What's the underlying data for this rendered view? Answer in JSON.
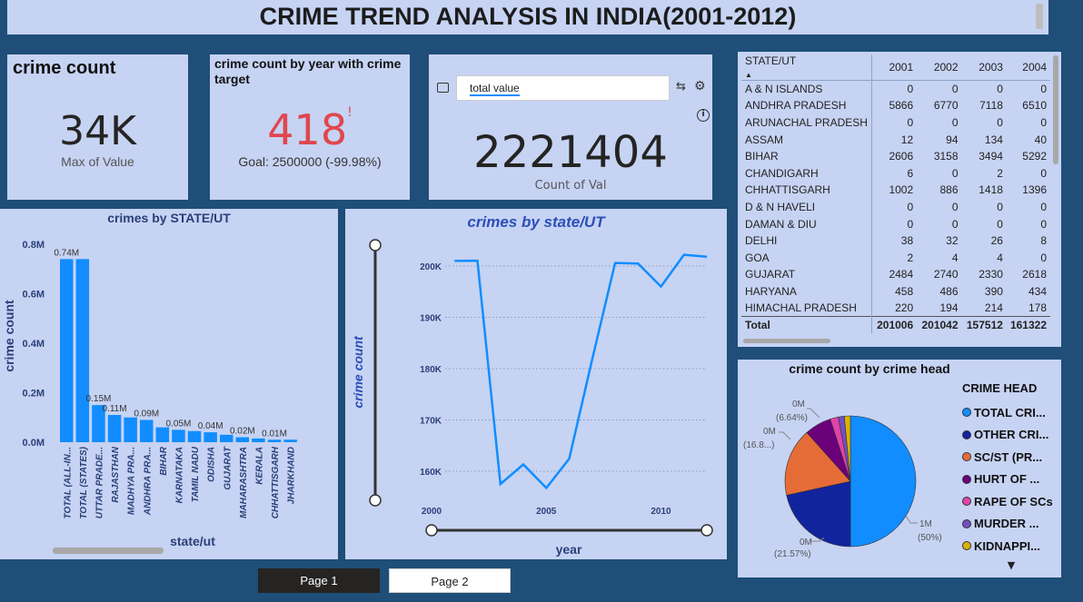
{
  "title": "CRIME TREND ANALYSIS IN INDIA(2001-2012)",
  "kpi1": {
    "title": "crime count",
    "value": "34K",
    "subtitle": "Max of Value"
  },
  "kpi2": {
    "title": "crime count by year with crime target",
    "value": "418",
    "flag": "!",
    "goal": "Goal: 2500000 (-99.98%)"
  },
  "kpi3": {
    "input_value": "total value",
    "value": "2221404",
    "subtitle_partial": "Count of Val"
  },
  "matrix": {
    "headers": [
      "STATE/UT",
      "2001",
      "2002",
      "2003",
      "2004"
    ],
    "rows": [
      [
        "A & N ISLANDS",
        "0",
        "0",
        "0",
        "0"
      ],
      [
        "ANDHRA PRADESH",
        "5866",
        "6770",
        "7118",
        "6510"
      ],
      [
        "ARUNACHAL PRADESH",
        "0",
        "0",
        "0",
        "0"
      ],
      [
        "ASSAM",
        "12",
        "94",
        "134",
        "40"
      ],
      [
        "BIHAR",
        "2606",
        "3158",
        "3494",
        "5292"
      ],
      [
        "CHANDIGARH",
        "6",
        "0",
        "2",
        "0"
      ],
      [
        "CHHATTISGARH",
        "1002",
        "886",
        "1418",
        "1396"
      ],
      [
        "D & N HAVELI",
        "0",
        "0",
        "0",
        "0"
      ],
      [
        "DAMAN & DIU",
        "0",
        "0",
        "0",
        "0"
      ],
      [
        "DELHI",
        "38",
        "32",
        "26",
        "8"
      ],
      [
        "GOA",
        "2",
        "4",
        "4",
        "0"
      ],
      [
        "GUJARAT",
        "2484",
        "2740",
        "2330",
        "2618"
      ],
      [
        "HARYANA",
        "458",
        "486",
        "390",
        "434"
      ],
      [
        "HIMACHAL PRADESH",
        "220",
        "194",
        "214",
        "178"
      ]
    ],
    "total": [
      "Total",
      "201006",
      "201042",
      "157512",
      "161322"
    ]
  },
  "bar_chart": {
    "title": "crimes by STATE/UT",
    "xlabel": "state/ut",
    "ylabel": "crime count",
    "ytick_labels": [
      "0.0M",
      "0.2M",
      "0.4M",
      "0.6M",
      "0.8M"
    ],
    "data_labels": [
      "0.74M",
      "",
      "0.15M",
      "0.11M",
      "",
      "0.09M",
      "",
      "0.05M",
      "",
      "0.04M",
      "",
      "0.02M",
      "",
      "0.01M",
      ""
    ],
    "color": "#118dff"
  },
  "line_chart": {
    "title": "crimes by state/UT",
    "xlabel": "year",
    "ylabel": "crime count",
    "ytick_labels": [
      "160K",
      "170K",
      "180K",
      "190K",
      "200K"
    ],
    "xtick_labels": [
      "2000",
      "2005",
      "2010"
    ],
    "color": "#118dff"
  },
  "pie_chart": {
    "title": "crime count by crime head",
    "legend_title": "CRIME HEAD",
    "labels": [
      {
        "value": "1M",
        "pct": "(50%)"
      },
      {
        "value": "0M",
        "pct": "(21.57%)"
      },
      {
        "value": "0M",
        "pct": "(16.8...)"
      },
      {
        "value": "0M",
        "pct": "(6.64%)"
      }
    ]
  },
  "tabs": {
    "page1": "Page 1",
    "page2": "Page 2"
  },
  "chart_data": [
    {
      "type": "bar",
      "title": "crimes by STATE/UT",
      "xlabel": "state/ut",
      "ylabel": "crime count",
      "ylim": [
        0,
        0.8
      ],
      "unit": "M",
      "categories": [
        "TOTAL (ALL-IN...",
        "TOTAL (STATES)",
        "UTTAR PRADE...",
        "RAJASTHAN",
        "MADHYA PRA...",
        "ANDHRA PRA...",
        "BIHAR",
        "KARNATAKA",
        "TAMIL NADU",
        "ODISHA",
        "GUJARAT",
        "MAHARASHTRA",
        "KERALA",
        "CHHATTISGARH",
        "JHARKHAND"
      ],
      "values": [
        0.74,
        0.74,
        0.15,
        0.11,
        0.1,
        0.09,
        0.06,
        0.05,
        0.045,
        0.04,
        0.03,
        0.02,
        0.015,
        0.01,
        0.01
      ]
    },
    {
      "type": "line",
      "title": "crimes by state/UT",
      "xlabel": "year",
      "ylabel": "crime count",
      "xlim": [
        2000,
        2012
      ],
      "ylim": [
        155000,
        204000
      ],
      "x": [
        2001,
        2002,
        2003,
        2004,
        2005,
        2006,
        2007,
        2008,
        2009,
        2010,
        2011,
        2012
      ],
      "values": [
        201006,
        201042,
        157512,
        161322,
        156737,
        162444,
        181800,
        200600,
        200500,
        196000,
        202200,
        201800
      ]
    },
    {
      "type": "pie",
      "title": "crime count by crime head",
      "categories": [
        "TOTAL CRI...",
        "OTHER CRI...",
        "SC/ST (PR...",
        "HURT OF ...",
        "RAPE OF SCs",
        "MURDER ...",
        "KIDNAPPI..."
      ],
      "values": [
        50,
        21.57,
        16.8,
        6.64,
        2.0,
        1.5,
        1.49
      ],
      "colors": [
        "#118dff",
        "#12239e",
        "#e66c37",
        "#6b007b",
        "#e044a7",
        "#744ec2",
        "#d9b300"
      ]
    }
  ]
}
